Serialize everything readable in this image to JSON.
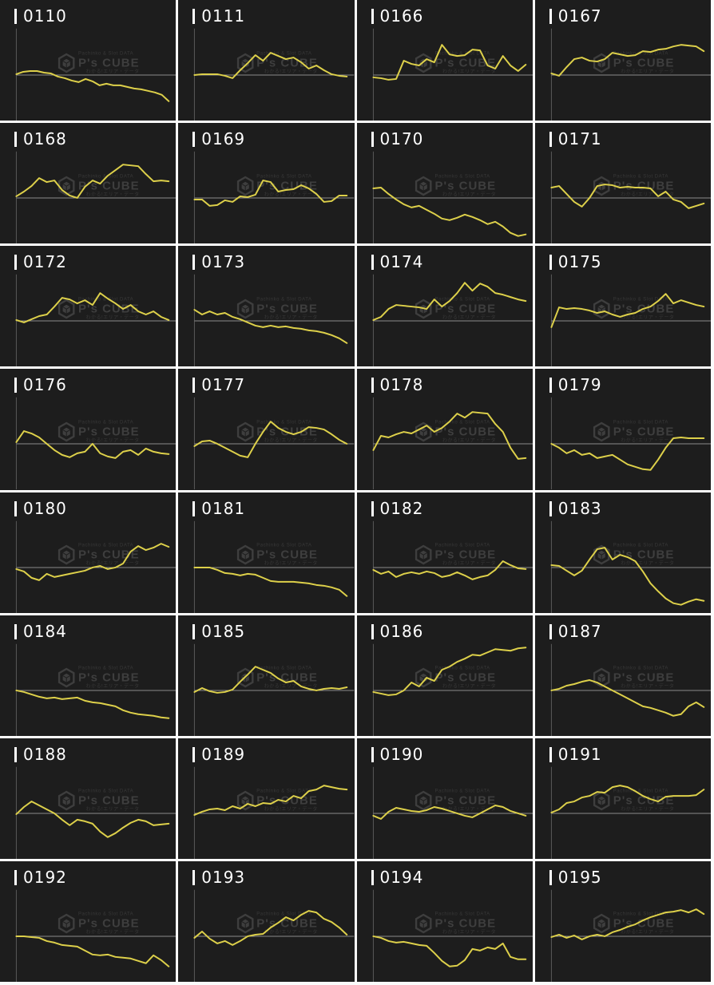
{
  "colors": {
    "background": "#1d1d1d",
    "line": "#ddd04a",
    "baseline": "#8b8b8b",
    "axis": "#585858",
    "separator": "#fbfbfb",
    "label_text": "#ffffff",
    "watermark": "#3e3e3e"
  },
  "watermark": {
    "top_text": "Pachinko & Slot DATA",
    "brand": "P's CUBE",
    "bottom_text": "わかる!エリア・データ"
  },
  "chart_meta": {
    "grid": "4 columns x 8 rows of sparkline panels",
    "x_axis_labels": "none",
    "y_axis_labels": "none",
    "baseline_value": 0,
    "values_unit": "pixels above zero baseline (negative = below)"
  },
  "chart_data": [
    {
      "type": "line",
      "title": "0110",
      "values": [
        1,
        4,
        5,
        5,
        3,
        2,
        -2,
        -4,
        -7,
        -9,
        -5,
        -8,
        -13,
        -11,
        -13,
        -13,
        -15,
        -17,
        -18,
        -20,
        -22,
        -25,
        -33
      ]
    },
    {
      "type": "line",
      "title": "0111",
      "values": [
        0,
        1,
        1,
        1,
        -1,
        -4,
        6,
        15,
        25,
        18,
        28,
        24,
        20,
        22,
        16,
        8,
        12,
        6,
        1,
        -1,
        -2
      ]
    },
    {
      "type": "line",
      "title": "0166",
      "values": [
        -3,
        -4,
        -6,
        -5,
        18,
        14,
        12,
        20,
        16,
        38,
        26,
        24,
        25,
        32,
        31,
        12,
        8,
        24,
        12,
        5,
        13
      ]
    },
    {
      "type": "line",
      "title": "0167",
      "values": [
        2,
        -1,
        10,
        20,
        22,
        18,
        17,
        20,
        28,
        26,
        24,
        25,
        30,
        29,
        32,
        33,
        36,
        38,
        37,
        36,
        30
      ]
    },
    {
      "type": "line",
      "title": "0168",
      "values": [
        2,
        8,
        15,
        25,
        20,
        22,
        10,
        3,
        0,
        14,
        22,
        18,
        28,
        35,
        42,
        41,
        40,
        30,
        21,
        22,
        21
      ]
    },
    {
      "type": "line",
      "title": "0169",
      "values": [
        -2,
        -2,
        -10,
        -9,
        -3,
        -5,
        2,
        1,
        4,
        22,
        20,
        8,
        10,
        11,
        16,
        12,
        5,
        -5,
        -4,
        3,
        3
      ]
    },
    {
      "type": "line",
      "title": "0170",
      "values": [
        12,
        13,
        5,
        -2,
        -8,
        -12,
        -10,
        -15,
        -20,
        -26,
        -28,
        -25,
        -21,
        -24,
        -28,
        -33,
        -30,
        -36,
        -44,
        -48,
        -46
      ]
    },
    {
      "type": "line",
      "title": "0171",
      "values": [
        13,
        15,
        5,
        -5,
        -11,
        0,
        15,
        17,
        16,
        13,
        14,
        13,
        13,
        12,
        2,
        8,
        -2,
        -5,
        -13,
        -10,
        -7
      ]
    },
    {
      "type": "line",
      "title": "0172",
      "values": [
        1,
        -2,
        2,
        6,
        8,
        18,
        29,
        27,
        22,
        26,
        20,
        35,
        28,
        22,
        15,
        20,
        12,
        8,
        12,
        5,
        1
      ]
    },
    {
      "type": "line",
      "title": "0173",
      "values": [
        14,
        8,
        12,
        8,
        10,
        5,
        2,
        -2,
        -6,
        -8,
        -6,
        -8,
        -7,
        -9,
        -10,
        -12,
        -13,
        -15,
        -18,
        -22,
        -28
      ]
    },
    {
      "type": "line",
      "title": "0174",
      "values": [
        1,
        5,
        15,
        20,
        19,
        18,
        17,
        15,
        27,
        18,
        25,
        35,
        48,
        38,
        47,
        43,
        35,
        33,
        30,
        27,
        25
      ]
    },
    {
      "type": "line",
      "title": "0175",
      "values": [
        -8,
        17,
        15,
        16,
        15,
        13,
        10,
        12,
        8,
        5,
        8,
        10,
        15,
        18,
        25,
        34,
        22,
        26,
        23,
        20,
        18
      ]
    },
    {
      "type": "line",
      "title": "0176",
      "values": [
        2,
        16,
        13,
        8,
        0,
        -8,
        -14,
        -17,
        -12,
        -10,
        0,
        -12,
        -16,
        -18,
        -10,
        -8,
        -14,
        -6,
        -10,
        -12,
        -13
      ]
    },
    {
      "type": "line",
      "title": "0177",
      "values": [
        -3,
        3,
        4,
        0,
        -5,
        -10,
        -15,
        -17,
        0,
        15,
        28,
        20,
        15,
        12,
        15,
        21,
        20,
        18,
        12,
        5,
        0
      ]
    },
    {
      "type": "line",
      "title": "0178",
      "values": [
        -8,
        10,
        8,
        12,
        15,
        13,
        18,
        23,
        15,
        20,
        28,
        38,
        33,
        40,
        39,
        38,
        25,
        15,
        -5,
        -19,
        -18
      ]
    },
    {
      "type": "line",
      "title": "0179",
      "values": [
        0,
        -5,
        -12,
        -8,
        -14,
        -12,
        -18,
        -16,
        -14,
        -20,
        -26,
        -29,
        -32,
        -33,
        -20,
        -5,
        7,
        8,
        7,
        7,
        7
      ]
    },
    {
      "type": "line",
      "title": "0180",
      "values": [
        -2,
        -5,
        -13,
        -16,
        -8,
        -12,
        -10,
        -8,
        -6,
        -4,
        0,
        2,
        -2,
        0,
        5,
        20,
        27,
        22,
        25,
        30,
        26
      ]
    },
    {
      "type": "line",
      "title": "0181",
      "values": [
        0,
        0,
        0,
        -3,
        -7,
        -8,
        -10,
        -8,
        -9,
        -13,
        -17,
        -18,
        -18,
        -18,
        -19,
        -20,
        -22,
        -23,
        -25,
        -28,
        -36
      ]
    },
    {
      "type": "line",
      "title": "0182",
      "values": [
        -3,
        -8,
        -5,
        -12,
        -8,
        -6,
        -8,
        -5,
        -7,
        -12,
        -10,
        -6,
        -10,
        -15,
        -12,
        -10,
        -3,
        8,
        3,
        -1,
        -2
      ]
    },
    {
      "type": "line",
      "title": "0183",
      "values": [
        3,
        2,
        -4,
        -10,
        -4,
        10,
        23,
        25,
        10,
        16,
        13,
        8,
        -5,
        -20,
        -30,
        -39,
        -45,
        -47,
        -43,
        -40,
        -42
      ]
    },
    {
      "type": "line",
      "title": "0184",
      "values": [
        0,
        -2,
        -5,
        -8,
        -10,
        -9,
        -11,
        -10,
        -9,
        -13,
        -15,
        -16,
        -18,
        -20,
        -25,
        -28,
        -30,
        -31,
        -32,
        -34,
        -35
      ]
    },
    {
      "type": "line",
      "title": "0185",
      "values": [
        -2,
        3,
        -1,
        -3,
        -2,
        1,
        11,
        20,
        30,
        26,
        22,
        15,
        10,
        12,
        5,
        2,
        0,
        2,
        3,
        2,
        4
      ]
    },
    {
      "type": "line",
      "title": "0186",
      "values": [
        -2,
        -4,
        -6,
        -5,
        0,
        10,
        5,
        16,
        12,
        26,
        30,
        36,
        40,
        45,
        44,
        48,
        52,
        51,
        50,
        53,
        54
      ]
    },
    {
      "type": "line",
      "title": "0187",
      "values": [
        0,
        2,
        6,
        8,
        11,
        13,
        10,
        5,
        0,
        -5,
        -10,
        -15,
        -20,
        -22,
        -25,
        -28,
        -32,
        -30,
        -20,
        -15,
        -21
      ]
    },
    {
      "type": "line",
      "title": "0188",
      "values": [
        -1,
        8,
        15,
        10,
        5,
        0,
        -8,
        -15,
        -8,
        -10,
        -13,
        -23,
        -30,
        -25,
        -18,
        -12,
        -8,
        -10,
        -15,
        -14,
        -13
      ]
    },
    {
      "type": "line",
      "title": "0189",
      "values": [
        -2,
        2,
        5,
        6,
        4,
        9,
        6,
        12,
        9,
        13,
        12,
        17,
        15,
        22,
        19,
        28,
        30,
        35,
        33,
        31,
        30
      ]
    },
    {
      "type": "line",
      "title": "0190",
      "values": [
        -3,
        -7,
        2,
        7,
        5,
        3,
        2,
        4,
        8,
        6,
        3,
        0,
        -3,
        -5,
        0,
        5,
        10,
        8,
        3,
        0,
        -3
      ]
    },
    {
      "type": "line",
      "title": "0191",
      "values": [
        1,
        5,
        13,
        15,
        20,
        22,
        27,
        26,
        33,
        35,
        33,
        28,
        22,
        18,
        15,
        21,
        22,
        22,
        22,
        23,
        30
      ]
    },
    {
      "type": "line",
      "title": "0192",
      "values": [
        0,
        0,
        -1,
        -2,
        -6,
        -8,
        -11,
        -12,
        -13,
        -18,
        -23,
        -24,
        -23,
        -26,
        -27,
        -28,
        -31,
        -34,
        -24,
        -30,
        -38
      ]
    },
    {
      "type": "line",
      "title": "0193",
      "values": [
        -2,
        6,
        -3,
        -9,
        -6,
        -11,
        -6,
        0,
        2,
        3,
        11,
        17,
        24,
        20,
        27,
        32,
        30,
        22,
        18,
        11,
        2
      ]
    },
    {
      "type": "line",
      "title": "0194",
      "values": [
        0,
        -2,
        -6,
        -8,
        -7,
        -9,
        -11,
        -12,
        -21,
        -31,
        -38,
        -37,
        -30,
        -16,
        -18,
        -14,
        -16,
        -9,
        -26,
        -29,
        -29
      ]
    },
    {
      "type": "line",
      "title": "0195",
      "values": [
        -1,
        2,
        -2,
        1,
        -4,
        0,
        2,
        0,
        5,
        8,
        12,
        15,
        20,
        24,
        27,
        30,
        31,
        33,
        30,
        34,
        28
      ]
    }
  ]
}
